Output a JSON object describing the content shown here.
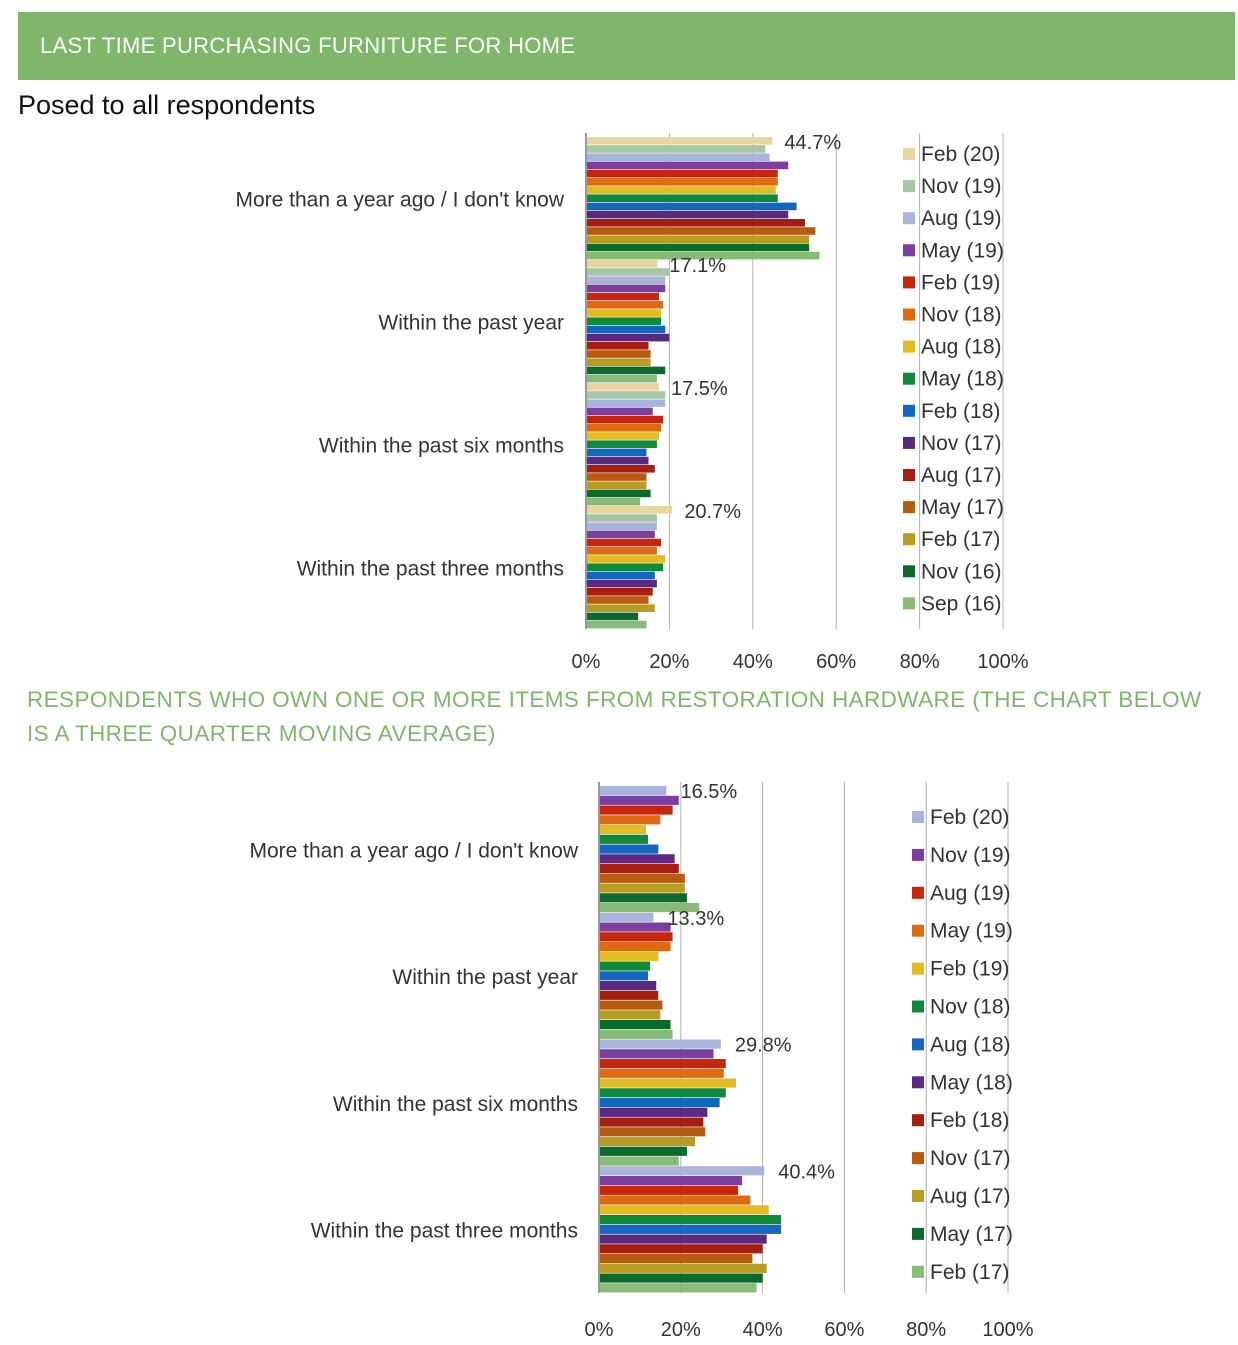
{
  "header": {
    "banner": "LAST TIME PURCHASING FURNITURE FOR HOME",
    "subtitle": "Posed to all respondents"
  },
  "section2": {
    "title": "RESPONDENTS WHO OWN ONE OR MORE ITEMS FROM RESTORATION HARDWARE (THE CHART BELOW IS A THREE QUARTER MOVING AVERAGE)"
  },
  "chart_data": [
    {
      "type": "bar",
      "orientation": "horizontal",
      "title": "LAST TIME PURCHASING FURNITURE FOR HOME",
      "xlim": [
        0,
        100
      ],
      "x_ticks": [
        "0%",
        "20%",
        "40%",
        "60%",
        "80%",
        "100%"
      ],
      "grid": true,
      "legend": "right",
      "categories": [
        "More than a year ago / I don't know",
        "Within the past year",
        "Within the past six months",
        "Within the past three months"
      ],
      "data_labels": [
        "44.7%",
        "17.1%",
        "17.5%",
        "20.7%"
      ],
      "series": [
        {
          "name": "Feb (20)",
          "color": "#e8d5a0",
          "values": [
            44.7,
            17.1,
            17.5,
            20.7
          ]
        },
        {
          "name": "Nov (19)",
          "color": "#a5c7a5",
          "values": [
            43.0,
            20.0,
            19.0,
            17.0
          ]
        },
        {
          "name": "Aug (19)",
          "color": "#a8b4dc",
          "values": [
            44.0,
            19.0,
            19.0,
            17.0
          ]
        },
        {
          "name": "May (19)",
          "color": "#7b3fa0",
          "values": [
            48.5,
            19.0,
            16.0,
            16.5
          ]
        },
        {
          "name": "Feb (19)",
          "color": "#c8250f",
          "values": [
            46.0,
            17.5,
            18.5,
            18.0
          ]
        },
        {
          "name": "Nov (18)",
          "color": "#e06a12",
          "values": [
            46.0,
            18.5,
            18.0,
            17.0
          ]
        },
        {
          "name": "Aug (18)",
          "color": "#e3bb22",
          "values": [
            45.5,
            18.0,
            17.5,
            19.0
          ]
        },
        {
          "name": "May (18)",
          "color": "#0f8a3a",
          "values": [
            46.0,
            18.0,
            17.0,
            18.5
          ]
        },
        {
          "name": "Feb (18)",
          "color": "#1467c0",
          "values": [
            50.5,
            19.0,
            14.5,
            16.5
          ]
        },
        {
          "name": "Nov (17)",
          "color": "#5a2a82",
          "values": [
            48.5,
            20.0,
            15.0,
            17.0
          ]
        },
        {
          "name": "Aug (17)",
          "color": "#a51e10",
          "values": [
            52.5,
            15.0,
            16.5,
            16.0
          ]
        },
        {
          "name": "May (17)",
          "color": "#b85b12",
          "values": [
            55.0,
            15.5,
            14.5,
            15.0
          ]
        },
        {
          "name": "Feb (17)",
          "color": "#b79d22",
          "values": [
            53.5,
            15.5,
            14.5,
            16.5
          ]
        },
        {
          "name": "Nov (16)",
          "color": "#0c6b2c",
          "values": [
            53.5,
            19.0,
            15.5,
            12.5
          ]
        },
        {
          "name": "Sep (16)",
          "color": "#86bc76",
          "values": [
            56.0,
            17.0,
            13.0,
            14.5
          ]
        }
      ]
    },
    {
      "type": "bar",
      "orientation": "horizontal",
      "title": "RESPONDENTS WHO OWN ONE OR MORE ITEMS FROM RESTORATION HARDWARE (THE CHART BELOW IS A THREE QUARTER MOVING AVERAGE)",
      "xlim": [
        0,
        100
      ],
      "x_ticks": [
        "0%",
        "20%",
        "40%",
        "60%",
        "80%",
        "100%"
      ],
      "grid": true,
      "legend": "right",
      "categories": [
        "More than a year ago / I don't know",
        "Within the past year",
        "Within the past six months",
        "Within the past three months"
      ],
      "data_labels": [
        "16.5%",
        "13.3%",
        "29.8%",
        "40.4%"
      ],
      "series": [
        {
          "name": "Feb (20)",
          "color": "#a8b4dc",
          "values": [
            16.5,
            13.3,
            29.8,
            40.4
          ]
        },
        {
          "name": "Nov (19)",
          "color": "#7b3fa0",
          "values": [
            19.5,
            17.5,
            28.0,
            35.0
          ]
        },
        {
          "name": "Aug (19)",
          "color": "#c8250f",
          "values": [
            18.0,
            18.0,
            31.0,
            34.0
          ]
        },
        {
          "name": "May (19)",
          "color": "#e06a12",
          "values": [
            15.0,
            17.5,
            30.5,
            37.0
          ]
        },
        {
          "name": "Feb (19)",
          "color": "#e3bb22",
          "values": [
            11.5,
            14.5,
            33.5,
            41.5
          ]
        },
        {
          "name": "Nov (18)",
          "color": "#0f8a3a",
          "values": [
            12.0,
            12.5,
            31.0,
            44.5
          ]
        },
        {
          "name": "Aug (18)",
          "color": "#1467c0",
          "values": [
            14.5,
            12.0,
            29.5,
            44.5
          ]
        },
        {
          "name": "May (18)",
          "color": "#5a2a82",
          "values": [
            18.5,
            14.0,
            26.5,
            41.0
          ]
        },
        {
          "name": "Feb (18)",
          "color": "#a51e10",
          "values": [
            19.5,
            14.5,
            25.5,
            40.0
          ]
        },
        {
          "name": "Nov (17)",
          "color": "#b85b12",
          "values": [
            21.0,
            15.5,
            26.0,
            37.5
          ]
        },
        {
          "name": "Aug (17)",
          "color": "#b79d22",
          "values": [
            21.0,
            15.0,
            23.5,
            41.0
          ]
        },
        {
          "name": "May (17)",
          "color": "#0c6b2c",
          "values": [
            21.5,
            17.5,
            21.5,
            40.0
          ]
        },
        {
          "name": "Feb (17)",
          "color": "#86bc76",
          "values": [
            24.5,
            18.0,
            19.5,
            38.5
          ]
        }
      ]
    }
  ]
}
